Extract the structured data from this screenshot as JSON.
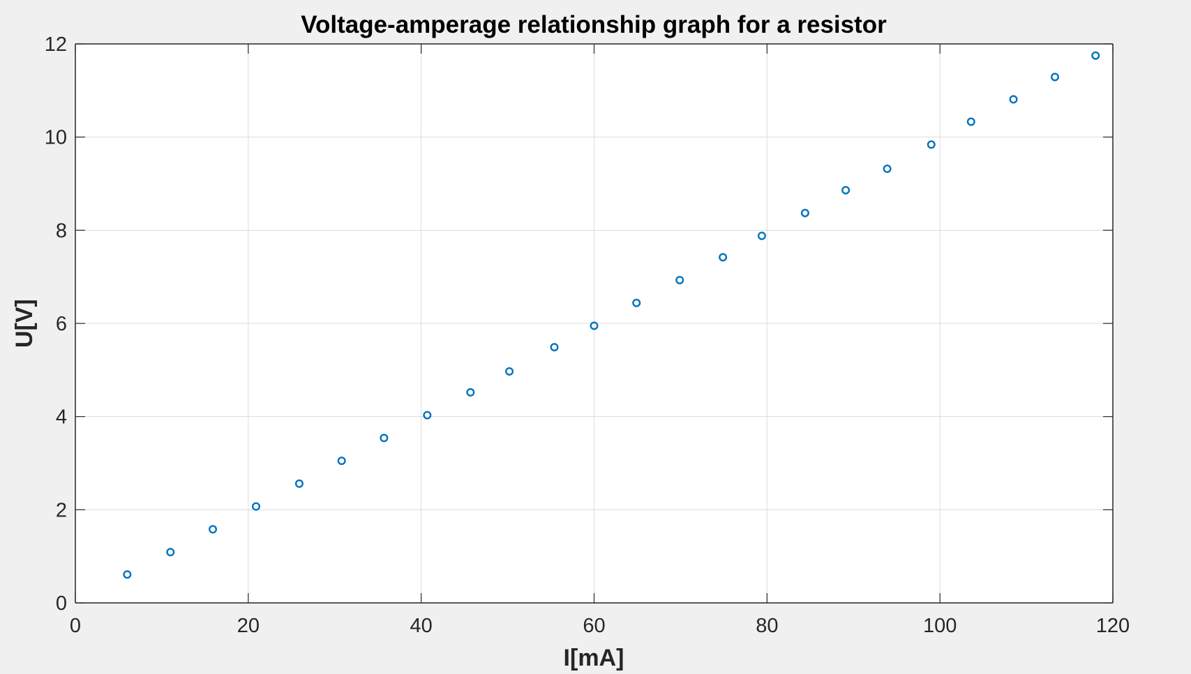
{
  "chart_data": {
    "type": "scatter",
    "title": "Voltage-amperage relationship graph for a resistor",
    "xlabel": "I[mA]",
    "ylabel": "U[V]",
    "xlim": [
      0,
      120
    ],
    "ylim": [
      0,
      12
    ],
    "xticks": [
      "0",
      "20",
      "40",
      "60",
      "80",
      "100",
      "120"
    ],
    "yticks": [
      "0",
      "2",
      "4",
      "6",
      "8",
      "10",
      "12"
    ],
    "grid": true,
    "marker": "circle-open",
    "series": [
      {
        "color": "#0072bd",
        "x": [
          6.0,
          11.0,
          15.9,
          20.9,
          25.9,
          30.8,
          35.7,
          40.7,
          45.7,
          50.2,
          55.4,
          60.0,
          64.9,
          69.9,
          74.9,
          79.4,
          84.4,
          89.1,
          93.9,
          99.0,
          103.6,
          108.5,
          113.3,
          118.0
        ],
        "y": [
          0.61,
          1.09,
          1.58,
          2.07,
          2.56,
          3.05,
          3.54,
          4.03,
          4.52,
          4.97,
          5.49,
          5.95,
          6.44,
          6.93,
          7.42,
          7.88,
          8.37,
          8.86,
          9.32,
          9.84,
          10.33,
          10.81,
          11.29,
          11.75
        ]
      }
    ]
  },
  "colors": {
    "figure_background": "#f0f0f0",
    "axes_background": "#ffffff",
    "grid": "#dcdcdc",
    "axis": "#262626",
    "marker": "#0072bd"
  }
}
